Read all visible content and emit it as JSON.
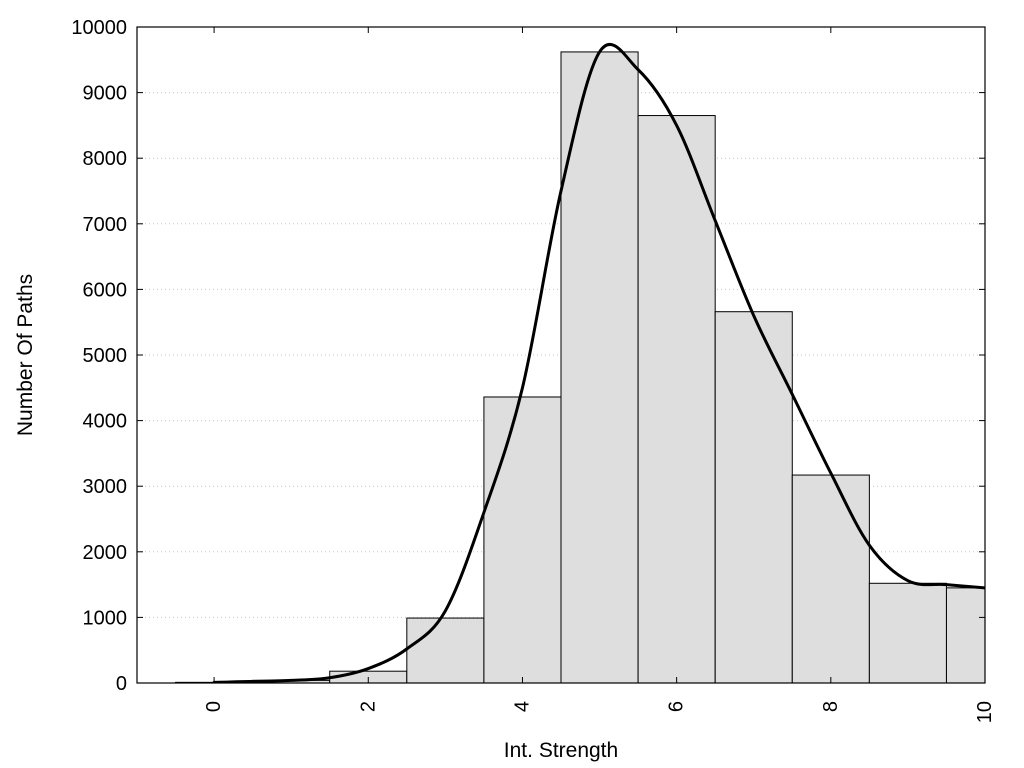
{
  "chart_data": {
    "type": "bar",
    "title": "",
    "xlabel": "Int. Strength",
    "ylabel": "Number Of Paths",
    "xlim": [
      -1,
      10
    ],
    "ylim": [
      0,
      10000
    ],
    "x_ticks": [
      0,
      2,
      4,
      6,
      8,
      10
    ],
    "y_ticks": [
      0,
      1000,
      2000,
      3000,
      4000,
      5000,
      6000,
      7000,
      8000,
      9000,
      10000
    ],
    "grid": "horizontal-dotted",
    "bar_color": "#dedede",
    "curve_color": "#000000",
    "bin_width": 1,
    "x": [
      0,
      1,
      2,
      3,
      4,
      5,
      6,
      7,
      8,
      9,
      10
    ],
    "values": [
      10,
      40,
      180,
      990,
      4360,
      9620,
      8650,
      5660,
      3170,
      1520,
      1450
    ],
    "smooth_curve": {
      "x": [
        0,
        1,
        1.5,
        2,
        2.5,
        3,
        3.5,
        4,
        4.5,
        5,
        5.5,
        6,
        6.5,
        7,
        7.5,
        8,
        8.5,
        9,
        9.5,
        10
      ],
      "y": [
        10,
        40,
        80,
        220,
        520,
        1100,
        2600,
        4500,
        7500,
        9620,
        9350,
        8500,
        7050,
        5600,
        4400,
        3200,
        2100,
        1560,
        1500,
        1450
      ]
    }
  }
}
